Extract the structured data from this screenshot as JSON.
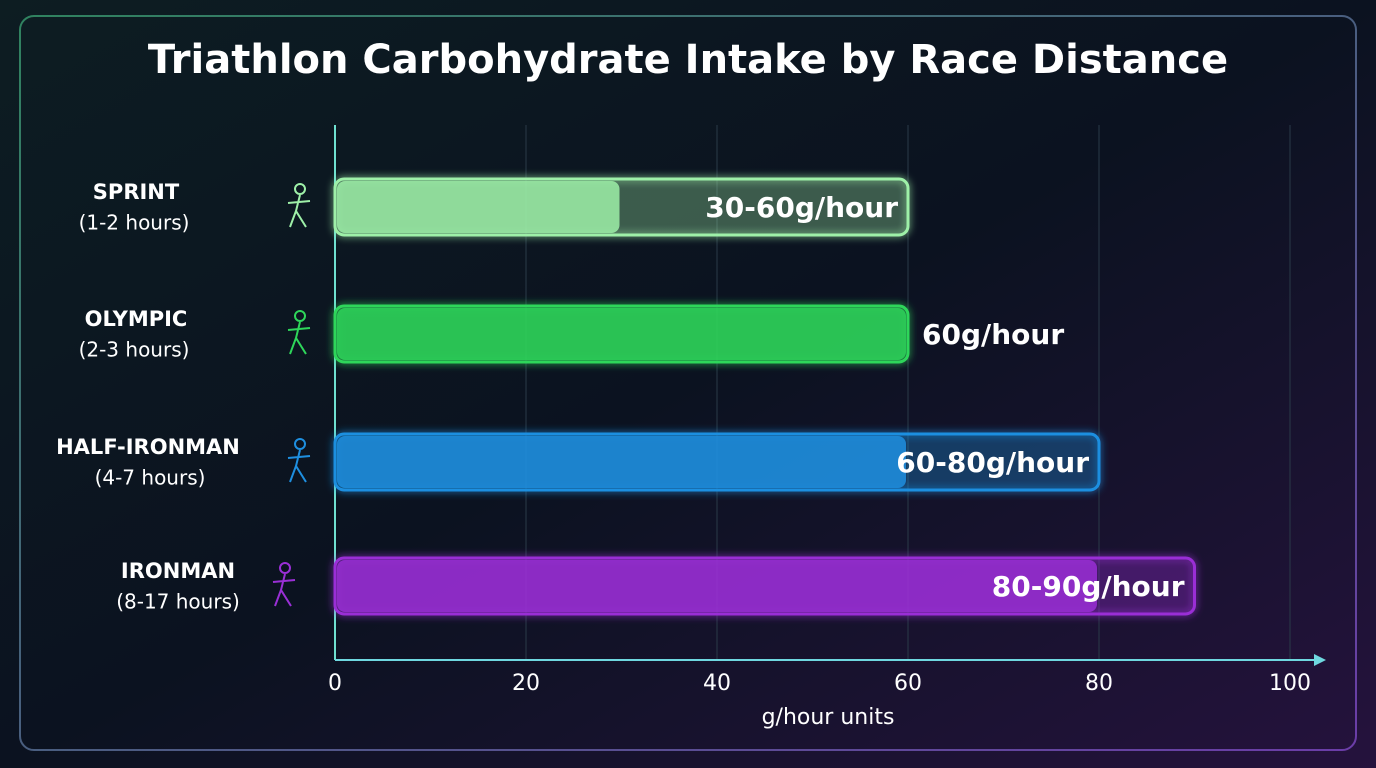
{
  "chart_data": {
    "type": "range-bar",
    "title": "Triathlon Carbohydrate Intake by Race Distance",
    "categories": [
      "SPRINT",
      "OLYMPIC",
      "HALF-IRONMAN",
      "IRONMAN"
    ],
    "durations": [
      "(1-2 hours)",
      "(2-3 hours)",
      "(4-7 hours)",
      "(8-17 hours)"
    ],
    "ranges": [
      [
        30,
        60
      ],
      [
        60,
        60
      ],
      [
        60,
        80
      ],
      [
        80,
        90
      ]
    ],
    "value_labels": [
      "30-60g/hour",
      "60g/hour",
      "60-80g/hour",
      "80-90g/hour"
    ],
    "colors": [
      "#9ef0a8",
      "#2ed65a",
      "#1e8fe0",
      "#9a2fd6"
    ],
    "xlabel": "g/hour units",
    "xlim": [
      0,
      100
    ],
    "xticks": [
      0,
      20,
      40,
      60,
      80,
      100
    ],
    "grid": true
  }
}
